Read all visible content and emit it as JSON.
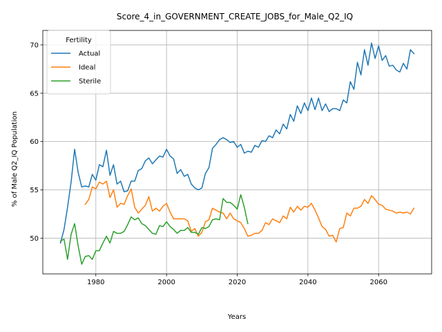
{
  "chart_data": {
    "type": "line",
    "title": "Score_4_in_GOVERNMENT_CREATE_JOBS_for_Male_Q2_IQ",
    "xlabel": "Years",
    "ylabel": "% of Male Q2_IQ Population",
    "xlim": [
      1965,
      2075
    ],
    "ylim": [
      46.3,
      71.5
    ],
    "xticks": [
      1980,
      2000,
      2020,
      2040,
      2060
    ],
    "yticks": [
      50,
      55,
      60,
      65,
      70
    ],
    "grid": true,
    "legend": {
      "title": "Fertility",
      "placement": "top-left"
    },
    "series": [
      {
        "name": "Actual",
        "color": "#1f77b4",
        "x": [
          1970,
          1971,
          1972,
          1973,
          1974,
          1975,
          1976,
          1977,
          1978,
          1979,
          1980,
          1981,
          1982,
          1983,
          1984,
          1985,
          1986,
          1987,
          1988,
          1989,
          1990,
          1991,
          1992,
          1993,
          1994,
          1995,
          1996,
          1997,
          1998,
          1999,
          2000,
          2001,
          2002,
          2003,
          2004,
          2005,
          2006,
          2007,
          2008,
          2009,
          2010,
          2011,
          2012,
          2013,
          2014,
          2015,
          2016,
          2017,
          2018,
          2019,
          2020,
          2021,
          2022,
          2023,
          2024,
          2025,
          2026,
          2027,
          2028,
          2029,
          2030,
          2031,
          2032,
          2033,
          2034,
          2035,
          2036,
          2037,
          2038,
          2039,
          2040,
          2041,
          2042,
          2043,
          2044,
          2045,
          2046,
          2047,
          2048,
          2049,
          2050,
          2051,
          2052,
          2053,
          2054,
          2055,
          2056,
          2057,
          2058,
          2059,
          2060,
          2061,
          2062,
          2063,
          2064,
          2065,
          2066,
          2067,
          2068,
          2069,
          2070
        ],
        "y": [
          49.5,
          50.9,
          53.2,
          55.8,
          59.2,
          56.8,
          55.3,
          55.4,
          55.3,
          56.6,
          56.0,
          57.6,
          57.4,
          59.1,
          56.5,
          57.6,
          55.6,
          55.9,
          54.8,
          54.9,
          55.9,
          55.9,
          57.0,
          57.2,
          58.0,
          58.3,
          57.7,
          58.1,
          58.5,
          58.4,
          59.2,
          58.5,
          58.2,
          56.7,
          57.1,
          56.4,
          56.6,
          55.6,
          55.2,
          55.0,
          55.2,
          56.7,
          57.3,
          59.3,
          59.7,
          60.2,
          60.4,
          60.2,
          59.9,
          60.0,
          59.4,
          59.7,
          58.8,
          59.0,
          58.9,
          59.6,
          59.4,
          60.1,
          60.0,
          60.6,
          60.4,
          61.2,
          60.8,
          61.8,
          61.3,
          62.8,
          62.1,
          63.7,
          62.9,
          64.0,
          63.2,
          64.5,
          63.3,
          64.5,
          63.2,
          63.9,
          63.1,
          63.4,
          63.4,
          63.2,
          64.3,
          64.0,
          66.2,
          65.4,
          68.2,
          66.9,
          69.5,
          67.9,
          70.2,
          68.6,
          69.9,
          68.4,
          68.9,
          67.8,
          67.9,
          67.4,
          67.2,
          68.1,
          67.5,
          69.5,
          69.1
        ]
      },
      {
        "name": "Ideal",
        "color": "#ff7f0e",
        "x": [
          1977,
          1978,
          1979,
          1980,
          1981,
          1982,
          1983,
          1984,
          1985,
          1986,
          1987,
          1988,
          1989,
          1990,
          1991,
          1992,
          1993,
          1994,
          1995,
          1996,
          1997,
          1998,
          1999,
          2000,
          2001,
          2002,
          2003,
          2004,
          2005,
          2006,
          2007,
          2008,
          2009,
          2010,
          2011,
          2012,
          2013,
          2014,
          2015,
          2016,
          2017,
          2018,
          2019,
          2020,
          2021,
          2022,
          2023,
          2024,
          2025,
          2026,
          2027,
          2028,
          2029,
          2030,
          2031,
          2032,
          2033,
          2034,
          2035,
          2036,
          2037,
          2038,
          2039,
          2040,
          2041,
          2042,
          2043,
          2044,
          2045,
          2046,
          2047,
          2048,
          2049,
          2050,
          2051,
          2052,
          2053,
          2054,
          2055,
          2056,
          2057,
          2058,
          2059,
          2060,
          2061,
          2062,
          2063,
          2064,
          2065,
          2066,
          2067,
          2068,
          2069,
          2070
        ],
        "y": [
          53.5,
          54.0,
          55.3,
          55.1,
          55.8,
          55.6,
          55.9,
          54.2,
          55.0,
          53.2,
          53.6,
          53.5,
          54.4,
          55.1,
          53.2,
          52.6,
          53.0,
          53.4,
          54.3,
          52.8,
          53.1,
          52.8,
          53.3,
          53.6,
          52.7,
          52.0,
          52.0,
          52.0,
          52.0,
          51.8,
          50.7,
          51.0,
          50.2,
          50.6,
          51.7,
          51.9,
          53.1,
          52.9,
          52.7,
          52.6,
          52.0,
          52.6,
          52.0,
          51.8,
          51.6,
          51.0,
          50.2,
          50.3,
          50.5,
          50.5,
          50.8,
          51.6,
          51.4,
          52.0,
          51.8,
          51.6,
          52.3,
          52.0,
          53.2,
          52.7,
          53.3,
          52.9,
          53.3,
          53.2,
          53.6,
          52.9,
          52.1,
          51.2,
          50.9,
          50.2,
          50.3,
          49.6,
          51.0,
          51.1,
          52.6,
          52.3,
          53.1,
          53.1,
          53.3,
          54.0,
          53.6,
          54.4,
          54.0,
          53.5,
          53.4,
          53.0,
          52.9,
          52.8,
          52.6,
          52.7,
          52.6,
          52.7,
          52.5,
          53.1
        ]
      },
      {
        "name": "Sterile",
        "color": "#2ca02c",
        "x": [
          1970,
          1971,
          1972,
          1973,
          1974,
          1975,
          1976,
          1977,
          1978,
          1979,
          1980,
          1981,
          1982,
          1983,
          1984,
          1985,
          1986,
          1987,
          1988,
          1989,
          1990,
          1991,
          1992,
          1993,
          1994,
          1995,
          1996,
          1997,
          1998,
          1999,
          2000,
          2001,
          2002,
          2003,
          2004,
          2005,
          2006,
          2007,
          2008,
          2009,
          2010,
          2011,
          2012,
          2013,
          2014,
          2015,
          2016,
          2017,
          2018,
          2019,
          2020,
          2021,
          2022,
          2023
        ],
        "y": [
          49.7,
          49.9,
          47.8,
          50.4,
          51.5,
          49.2,
          47.3,
          48.1,
          48.2,
          47.8,
          48.7,
          48.7,
          49.5,
          50.2,
          49.5,
          50.7,
          50.5,
          50.5,
          50.7,
          51.4,
          52.2,
          51.9,
          52.1,
          51.5,
          51.3,
          50.9,
          50.5,
          50.4,
          51.3,
          51.2,
          51.7,
          51.2,
          50.9,
          50.5,
          50.8,
          50.8,
          51.1,
          50.6,
          50.6,
          50.4,
          51.1,
          51.0,
          51.2,
          51.9,
          52.0,
          51.9,
          54.1,
          53.7,
          53.7,
          53.4,
          53.0,
          54.5,
          53.2,
          51.5
        ]
      }
    ]
  }
}
